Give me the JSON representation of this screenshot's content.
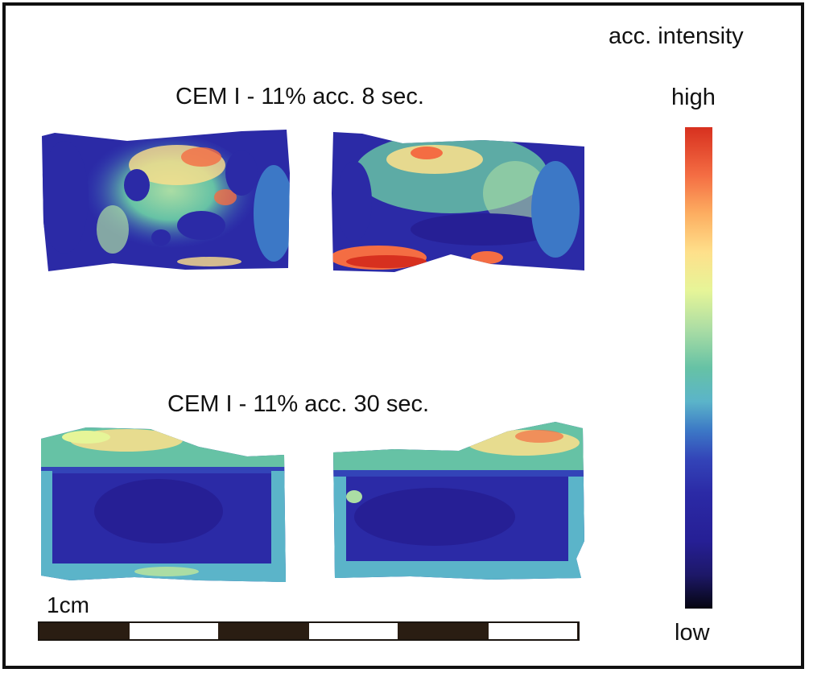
{
  "labels": {
    "top_condition": "CEM I - 11% acc. 8 sec.",
    "bottom_condition": "CEM I - 11% acc. 30 sec."
  },
  "legend": {
    "title": "acc. intensity",
    "high": "high",
    "low": "low"
  },
  "scale": {
    "label": "1cm",
    "segments": 6
  },
  "colors": {
    "low": "#261f95",
    "mid": "#66c2a5",
    "high": "#d7301f",
    "black": "#050510"
  }
}
